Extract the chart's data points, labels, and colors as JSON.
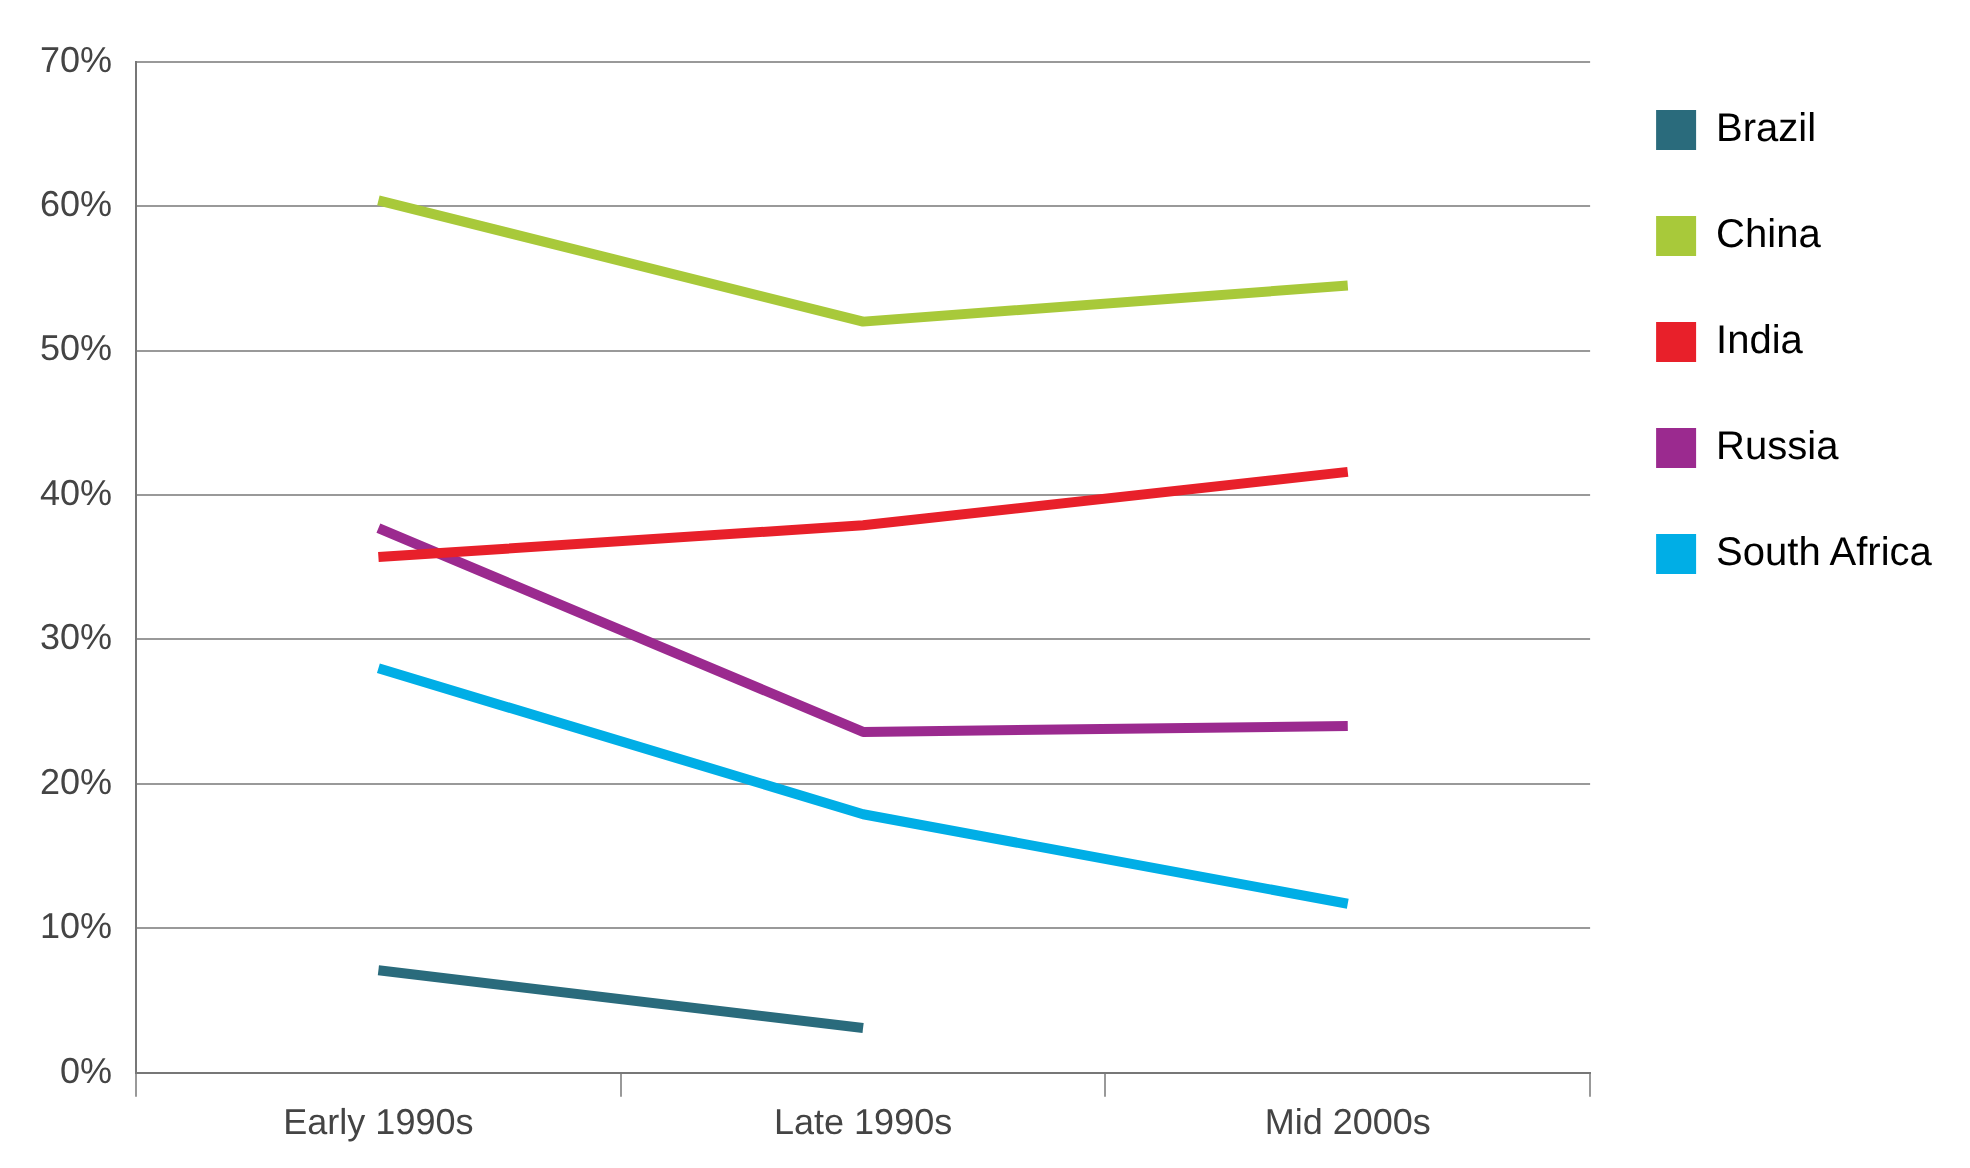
{
  "chart_data": {
    "type": "line",
    "categories": [
      "Early 1990s",
      "Late 1990s",
      "Mid 2000s"
    ],
    "series": [
      {
        "name": "Brazil",
        "color": "#2a6b7c",
        "values": [
          7.1,
          3.1,
          null
        ]
      },
      {
        "name": "China",
        "color": "#a8c93a",
        "values": [
          60.4,
          52.0,
          54.5
        ]
      },
      {
        "name": "India",
        "color": "#e8202a",
        "values": [
          35.7,
          37.9,
          41.6
        ]
      },
      {
        "name": "Russia",
        "color": "#9b2a8f",
        "values": [
          37.7,
          23.6,
          24.0
        ]
      },
      {
        "name": "South Africa",
        "color": "#00aee6",
        "values": [
          28.0,
          17.9,
          11.7
        ]
      }
    ],
    "ylim": [
      0,
      70
    ],
    "yticks": [
      {
        "value": 0,
        "label": "0%"
      },
      {
        "value": 10,
        "label": "10%"
      },
      {
        "value": 20,
        "label": "20%"
      },
      {
        "value": 30,
        "label": "30%"
      },
      {
        "value": 40,
        "label": "40%"
      },
      {
        "value": 50,
        "label": "50%"
      },
      {
        "value": 60,
        "label": "60%"
      },
      {
        "value": 70,
        "label": "70%"
      }
    ],
    "grid": "y",
    "legend": "top right",
    "marker": "none",
    "line_style": "solid"
  }
}
